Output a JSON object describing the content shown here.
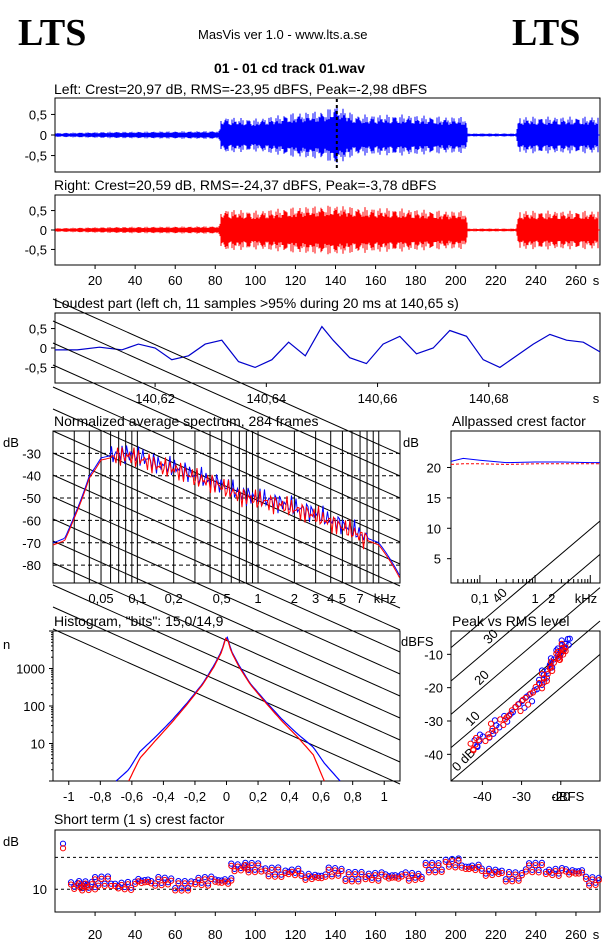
{
  "header": {
    "logo_left": "LTS",
    "logo_right": "LTS",
    "app_title": "MasVis ver 1.0 - www.lts.a.se",
    "track_title": "01 - 01 cd track 01.wav"
  },
  "colors": {
    "left": "#0000ff",
    "right": "#ff0000",
    "grid": "#000000"
  },
  "chart_data": [
    {
      "type": "line",
      "id": "left-waveform",
      "title": "Left: Crest=20,97 dB, RMS=-23,95 dBFS, Peak=-2,98 dBFS",
      "color": "#0000ff",
      "ylim": [
        -0.9,
        0.9
      ],
      "y_ticks": [
        0.5,
        0,
        -0.5
      ],
      "y_tick_labels": [
        "0,5",
        "0",
        "-0,5"
      ],
      "marker_time_s": 140.65,
      "envelope": {
        "x": [
          0,
          30,
          60,
          82,
          83,
          100,
          120,
          135,
          140,
          150,
          175,
          195,
          205,
          206,
          230,
          231,
          232,
          268
        ],
        "amp": [
          0.05,
          0.08,
          0.09,
          0.1,
          0.45,
          0.4,
          0.55,
          0.6,
          0.75,
          0.5,
          0.5,
          0.45,
          0.45,
          0.04,
          0.04,
          0.3,
          0.45,
          0.45
        ]
      }
    },
    {
      "type": "line",
      "id": "right-waveform",
      "title": "Right: Crest=20,59 dB, RMS=-24,37 dBFS, Peak=-3,78 dBFS",
      "color": "#ff0000",
      "ylim": [
        -0.9,
        0.9
      ],
      "y_ticks": [
        0.5,
        0,
        -0.5
      ],
      "y_tick_labels": [
        "0,5",
        "0",
        "-0,5"
      ],
      "x_ticks": [
        20,
        40,
        60,
        80,
        100,
        120,
        140,
        160,
        180,
        200,
        220,
        240,
        260
      ],
      "x_unit": "s",
      "xlim": [
        0,
        272
      ],
      "envelope": {
        "x": [
          0,
          30,
          60,
          82,
          83,
          100,
          120,
          140,
          150,
          175,
          195,
          205,
          206,
          230,
          231,
          232,
          268
        ],
        "amp": [
          0.05,
          0.08,
          0.09,
          0.1,
          0.55,
          0.5,
          0.6,
          0.65,
          0.6,
          0.55,
          0.5,
          0.5,
          0.04,
          0.04,
          0.3,
          0.5,
          0.5
        ]
      }
    },
    {
      "type": "line",
      "id": "loudest-part",
      "title": "Loudest part (left  ch, 11 samples >95% during 20 ms at 140,65 s)",
      "color": "#0000cc",
      "xlim": [
        140.602,
        140.7
      ],
      "ylim": [
        -0.9,
        0.9
      ],
      "x_ticks": [
        140.62,
        140.64,
        140.66,
        140.68
      ],
      "x_tick_labels": [
        "140,62",
        "140,64",
        "140,66",
        "140,68"
      ],
      "x_unit": "s",
      "y_ticks": [
        0.5,
        0,
        -0.5
      ],
      "y_tick_labels": [
        "0,5",
        "0",
        "-0,5"
      ],
      "x": [
        140.602,
        140.606,
        140.61,
        140.614,
        140.617,
        140.62,
        140.623,
        140.626,
        140.629,
        140.632,
        140.635,
        140.638,
        140.641,
        140.644,
        140.647,
        140.65,
        140.652,
        140.655,
        140.658,
        140.661,
        140.664,
        140.667,
        140.67,
        140.673,
        140.676,
        140.679,
        140.682,
        140.685,
        140.688,
        140.691,
        140.694,
        140.697,
        140.7
      ],
      "y": [
        -0.05,
        -0.05,
        0.02,
        -0.05,
        0.1,
        0.0,
        -0.3,
        -0.2,
        0.1,
        0.2,
        -0.35,
        -0.5,
        -0.3,
        0.15,
        -0.2,
        0.55,
        0.2,
        -0.25,
        -0.4,
        0.1,
        0.3,
        -0.15,
        0.0,
        0.45,
        0.3,
        -0.3,
        -0.5,
        -0.2,
        0.1,
        0.35,
        0.2,
        0.15,
        -0.1
      ]
    },
    {
      "type": "line",
      "id": "avg-spectrum",
      "title": "Normalized average spectrum, 284 frames",
      "ylabel": "dB",
      "x_unit": "kHz",
      "xlim": [
        0.02,
        15
      ],
      "x_scale": "log",
      "ylim": [
        -88,
        -20
      ],
      "y_ticks": [
        -30,
        -40,
        -50,
        -60,
        -70,
        -80
      ],
      "x_ticks": [
        0.05,
        0.1,
        0.2,
        0.5,
        1,
        2,
        3,
        4,
        5,
        7
      ],
      "x_tick_labels": [
        "0,05",
        "0,1",
        "0,2",
        "0,5",
        "1",
        "2",
        "3",
        "4",
        "5",
        "7"
      ],
      "series": [
        {
          "color": "#0000ff",
          "x": [
            0.02,
            0.025,
            0.03,
            0.04,
            0.05,
            0.07,
            0.1,
            0.15,
            0.2,
            0.3,
            0.5,
            0.7,
            1,
            1.5,
            2,
            3,
            4,
            5,
            6,
            7,
            8,
            10,
            12,
            15
          ],
          "y": [
            -70,
            -68,
            -58,
            -40,
            -32,
            -30,
            -31,
            -35,
            -36,
            -40,
            -44,
            -48,
            -50,
            -52,
            -54,
            -57,
            -60,
            -62,
            -64,
            -66,
            -68,
            -70,
            -76,
            -85
          ]
        },
        {
          "color": "#ff0000",
          "x": [
            0.02,
            0.025,
            0.03,
            0.04,
            0.05,
            0.07,
            0.1,
            0.15,
            0.2,
            0.3,
            0.5,
            0.7,
            1,
            1.5,
            2,
            3,
            4,
            5,
            6,
            7,
            8,
            10,
            12,
            15
          ],
          "y": [
            -71,
            -69,
            -59,
            -41,
            -33,
            -31,
            -32,
            -36,
            -37,
            -41,
            -45,
            -49,
            -51,
            -53,
            -55,
            -58,
            -61,
            -63,
            -65,
            -67,
            -69,
            -71,
            -77,
            -86
          ]
        }
      ]
    },
    {
      "type": "line",
      "id": "allpassed-crest",
      "title": "Allpassed crest factor",
      "ylabel": "dB",
      "x_unit": "kHz",
      "x_scale": "log",
      "xlim": [
        0.03,
        15
      ],
      "ylim": [
        1,
        26
      ],
      "y_ticks": [
        20,
        15,
        10,
        5
      ],
      "x_ticks": [
        0.1,
        1,
        2
      ],
      "x_tick_labels": [
        "0,1",
        "1",
        "2"
      ],
      "series": [
        {
          "color": "#0000ff",
          "x": [
            0.03,
            0.05,
            0.1,
            0.3,
            1,
            3,
            10,
            15
          ],
          "y": [
            21,
            21.5,
            21.2,
            20.8,
            20.9,
            20.9,
            20.8,
            20.8
          ]
        },
        {
          "color": "#ff0000",
          "x": [
            0.03,
            0.05,
            0.1,
            0.3,
            1,
            3,
            10,
            15
          ],
          "y": [
            20.5,
            20.6,
            20.6,
            20.5,
            20.6,
            20.6,
            20.6,
            20.6
          ]
        }
      ]
    },
    {
      "type": "line",
      "id": "histogram",
      "title": "Histogram, \"bits\": 15,0/14,9",
      "ylabel": "n",
      "y_scale": "log",
      "xlim": [
        -1.1,
        1.1
      ],
      "ylim": [
        1,
        10000
      ],
      "y_ticks": [
        1000,
        100,
        10
      ],
      "x_ticks": [
        -1,
        -0.8,
        -0.6,
        -0.4,
        -0.2,
        0,
        0.2,
        0.4,
        0.6,
        0.8,
        1
      ],
      "x_tick_labels": [
        "-1",
        "-0,8",
        "-0,6",
        "-0,4",
        "-0,2",
        "0",
        "0,2",
        "0,4",
        "0,6",
        "0,8",
        "1"
      ],
      "series": [
        {
          "color": "#0000ff",
          "x": [
            -0.7,
            -0.62,
            -0.55,
            -0.45,
            -0.35,
            -0.25,
            -0.15,
            -0.08,
            -0.03,
            0,
            0.03,
            0.08,
            0.15,
            0.25,
            0.35,
            0.45,
            0.55,
            0.62,
            0.72
          ],
          "y": [
            1,
            2,
            6,
            15,
            40,
            120,
            400,
            1200,
            3000,
            8000,
            3000,
            1200,
            400,
            130,
            45,
            18,
            8,
            3,
            1
          ]
        },
        {
          "color": "#ff0000",
          "x": [
            -0.62,
            -0.55,
            -0.45,
            -0.35,
            -0.25,
            -0.15,
            -0.08,
            -0.03,
            0,
            0.03,
            0.08,
            0.15,
            0.25,
            0.35,
            0.45,
            0.55,
            0.62
          ],
          "y": [
            1,
            4,
            12,
            35,
            110,
            380,
            1100,
            2800,
            7500,
            2800,
            1100,
            380,
            120,
            40,
            15,
            5,
            1
          ]
        }
      ]
    },
    {
      "type": "scatter",
      "id": "peak-vs-rms",
      "title": "Peak vs RMS level",
      "ylabel": "dBFS",
      "xlabel": "dBFS",
      "xlim": [
        -48,
        -10
      ],
      "ylim": [
        -48,
        -3
      ],
      "x_ticks": [
        -40,
        -30,
        -20
      ],
      "y_ticks": [
        -10,
        -20,
        -30,
        -40
      ],
      "diagonal_labels": [
        "40",
        "30",
        "20",
        "10",
        "0 dB"
      ],
      "series": [
        {
          "color": "#0000ff",
          "x": [
            -42,
            -40,
            -38,
            -36,
            -34,
            -32,
            -30,
            -28,
            -26,
            -25,
            -24,
            -23,
            -22,
            -21,
            -20,
            -19.5,
            -19,
            -18.5
          ],
          "y": [
            -37,
            -35,
            -34,
            -31,
            -29,
            -27,
            -25,
            -23,
            -20,
            -18,
            -16,
            -14,
            -12,
            -10,
            -9,
            -8,
            -7,
            -6
          ]
        },
        {
          "color": "#ff0000",
          "x": [
            -43,
            -41,
            -39,
            -37,
            -35,
            -33,
            -31,
            -29,
            -27,
            -25,
            -24,
            -23,
            -22,
            -21,
            -20,
            -19.5,
            -19
          ],
          "y": [
            -38,
            -36,
            -35,
            -32,
            -30,
            -28,
            -26,
            -24,
            -21,
            -19,
            -17,
            -15,
            -13,
            -11,
            -10,
            -9,
            -8
          ]
        }
      ]
    },
    {
      "type": "scatter",
      "id": "short-term-crest",
      "title": "Short term (1 s) crest factor",
      "ylabel": "dB",
      "xlim": [
        0,
        272
      ],
      "ylim": [
        5,
        23
      ],
      "y_ticks": [
        10
      ],
      "dashed_lines": [
        10,
        17
      ],
      "x_ticks": [
        20,
        40,
        60,
        80,
        100,
        120,
        140,
        160,
        180,
        200,
        220,
        240,
        260
      ],
      "x_unit": "s",
      "series": [
        {
          "color": "#0000ff",
          "x": [
            4,
            8,
            12,
            20,
            30,
            40,
            50,
            60,
            70,
            80,
            88,
            95,
            105,
            115,
            125,
            135,
            145,
            155,
            165,
            175,
            185,
            195,
            205,
            215,
            225,
            235,
            245,
            255,
            265
          ],
          "y": [
            20,
            11,
            11,
            12,
            11,
            12,
            12,
            11,
            12,
            12,
            15,
            15,
            14,
            14,
            13,
            14,
            13,
            13,
            13,
            13,
            15,
            16,
            15,
            14,
            13,
            15,
            14,
            14,
            12
          ]
        },
        {
          "color": "#ff0000",
          "x": [
            4,
            8,
            12,
            20,
            30,
            40,
            50,
            60,
            70,
            80,
            88,
            95,
            105,
            115,
            125,
            135,
            145,
            155,
            165,
            175,
            185,
            195,
            205,
            215,
            225,
            235,
            245,
            255,
            265
          ],
          "y": [
            19,
            10.5,
            10.5,
            11.5,
            10.5,
            11.5,
            11.5,
            10.5,
            11.5,
            11.5,
            14.5,
            14.5,
            13.5,
            13.5,
            12.5,
            13.5,
            12.5,
            12.5,
            12.5,
            12.5,
            14.5,
            15.5,
            14.5,
            13.5,
            12.5,
            14.5,
            13.5,
            13.5,
            11.5
          ]
        }
      ]
    }
  ]
}
